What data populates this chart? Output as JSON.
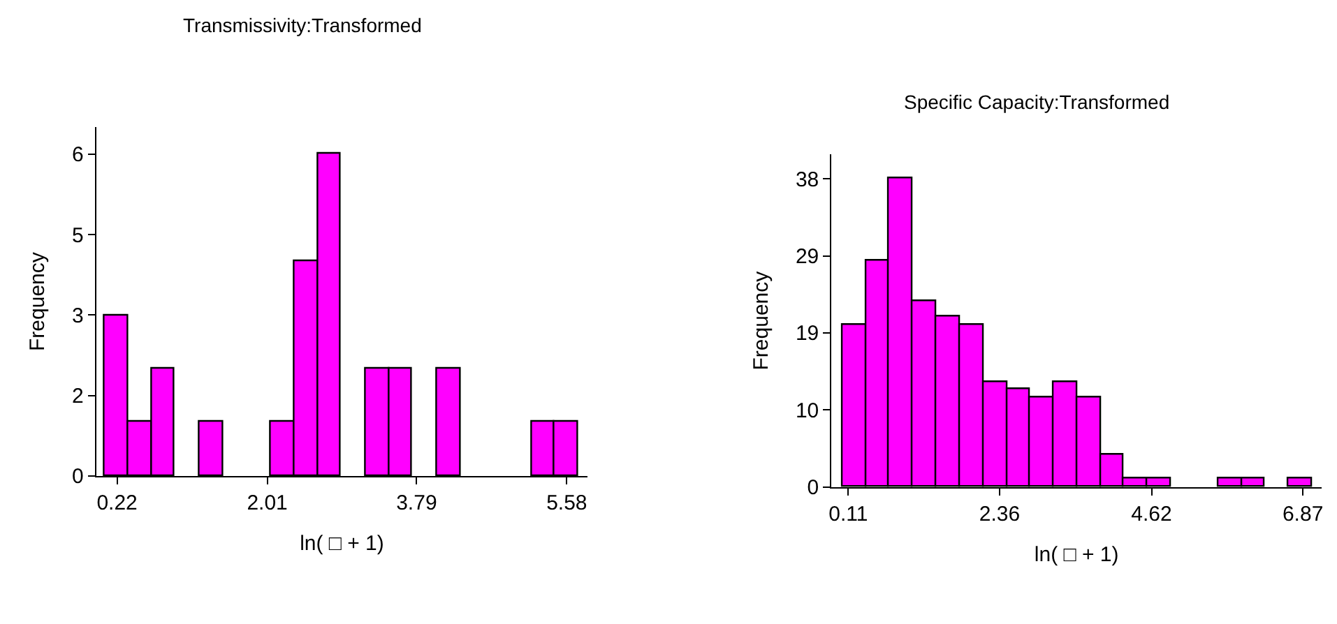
{
  "chart_data": [
    {
      "type": "histogram",
      "title": "Transmissivity:Transformed",
      "xlabel": "ln( □ + 1)",
      "ylabel": "Frequency",
      "bins": [
        0.07,
        0.35,
        0.63,
        0.91,
        1.2,
        1.48,
        2.05,
        2.33,
        2.61,
        2.89,
        3.18,
        3.46,
        3.74,
        4.03,
        4.31,
        5.16,
        5.44,
        5.72
      ],
      "values": [
        3,
        1,
        2,
        0,
        1,
        0,
        1,
        4,
        6,
        0,
        2,
        2,
        0,
        2,
        0,
        1,
        1
      ],
      "color": "#ff00ff",
      "xlim": [
        -0.03,
        5.83
      ],
      "xticks": [
        0.22,
        2.01,
        3.79,
        5.58
      ],
      "ylim": [
        0,
        6.5
      ],
      "yticks": [
        0,
        {
          "value": 1.5,
          "label": "2"
        },
        3,
        {
          "value": 4.5,
          "label": "5"
        },
        6
      ],
      "grid": false
    },
    {
      "type": "histogram",
      "title": "Specific Capacity:Transformed",
      "xlabel": "ln( □ + 1)",
      "ylabel": "Frequency",
      "bins": [
        0.02,
        0.37,
        0.72,
        1.07,
        1.42,
        1.77,
        2.12,
        2.47,
        2.82,
        3.17,
        3.51,
        3.86,
        4.21,
        4.56,
        4.91,
        5.61,
        5.96,
        6.31,
        6.66,
        7.01
      ],
      "values": [
        20,
        28,
        38,
        23,
        21,
        20,
        13,
        12,
        11,
        13,
        11,
        4,
        1,
        1,
        0,
        1,
        1,
        0,
        1
      ],
      "color": "#ff00ff",
      "xlim": [
        -0.14,
        7.15
      ],
      "xticks": [
        0.11,
        2.36,
        4.62,
        6.87
      ],
      "ylim": [
        0,
        41
      ],
      "yticks": [
        0,
        {
          "value": 9.5,
          "label": "10"
        },
        19,
        {
          "value": 28.5,
          "label": "29"
        },
        38
      ],
      "grid": false
    }
  ]
}
